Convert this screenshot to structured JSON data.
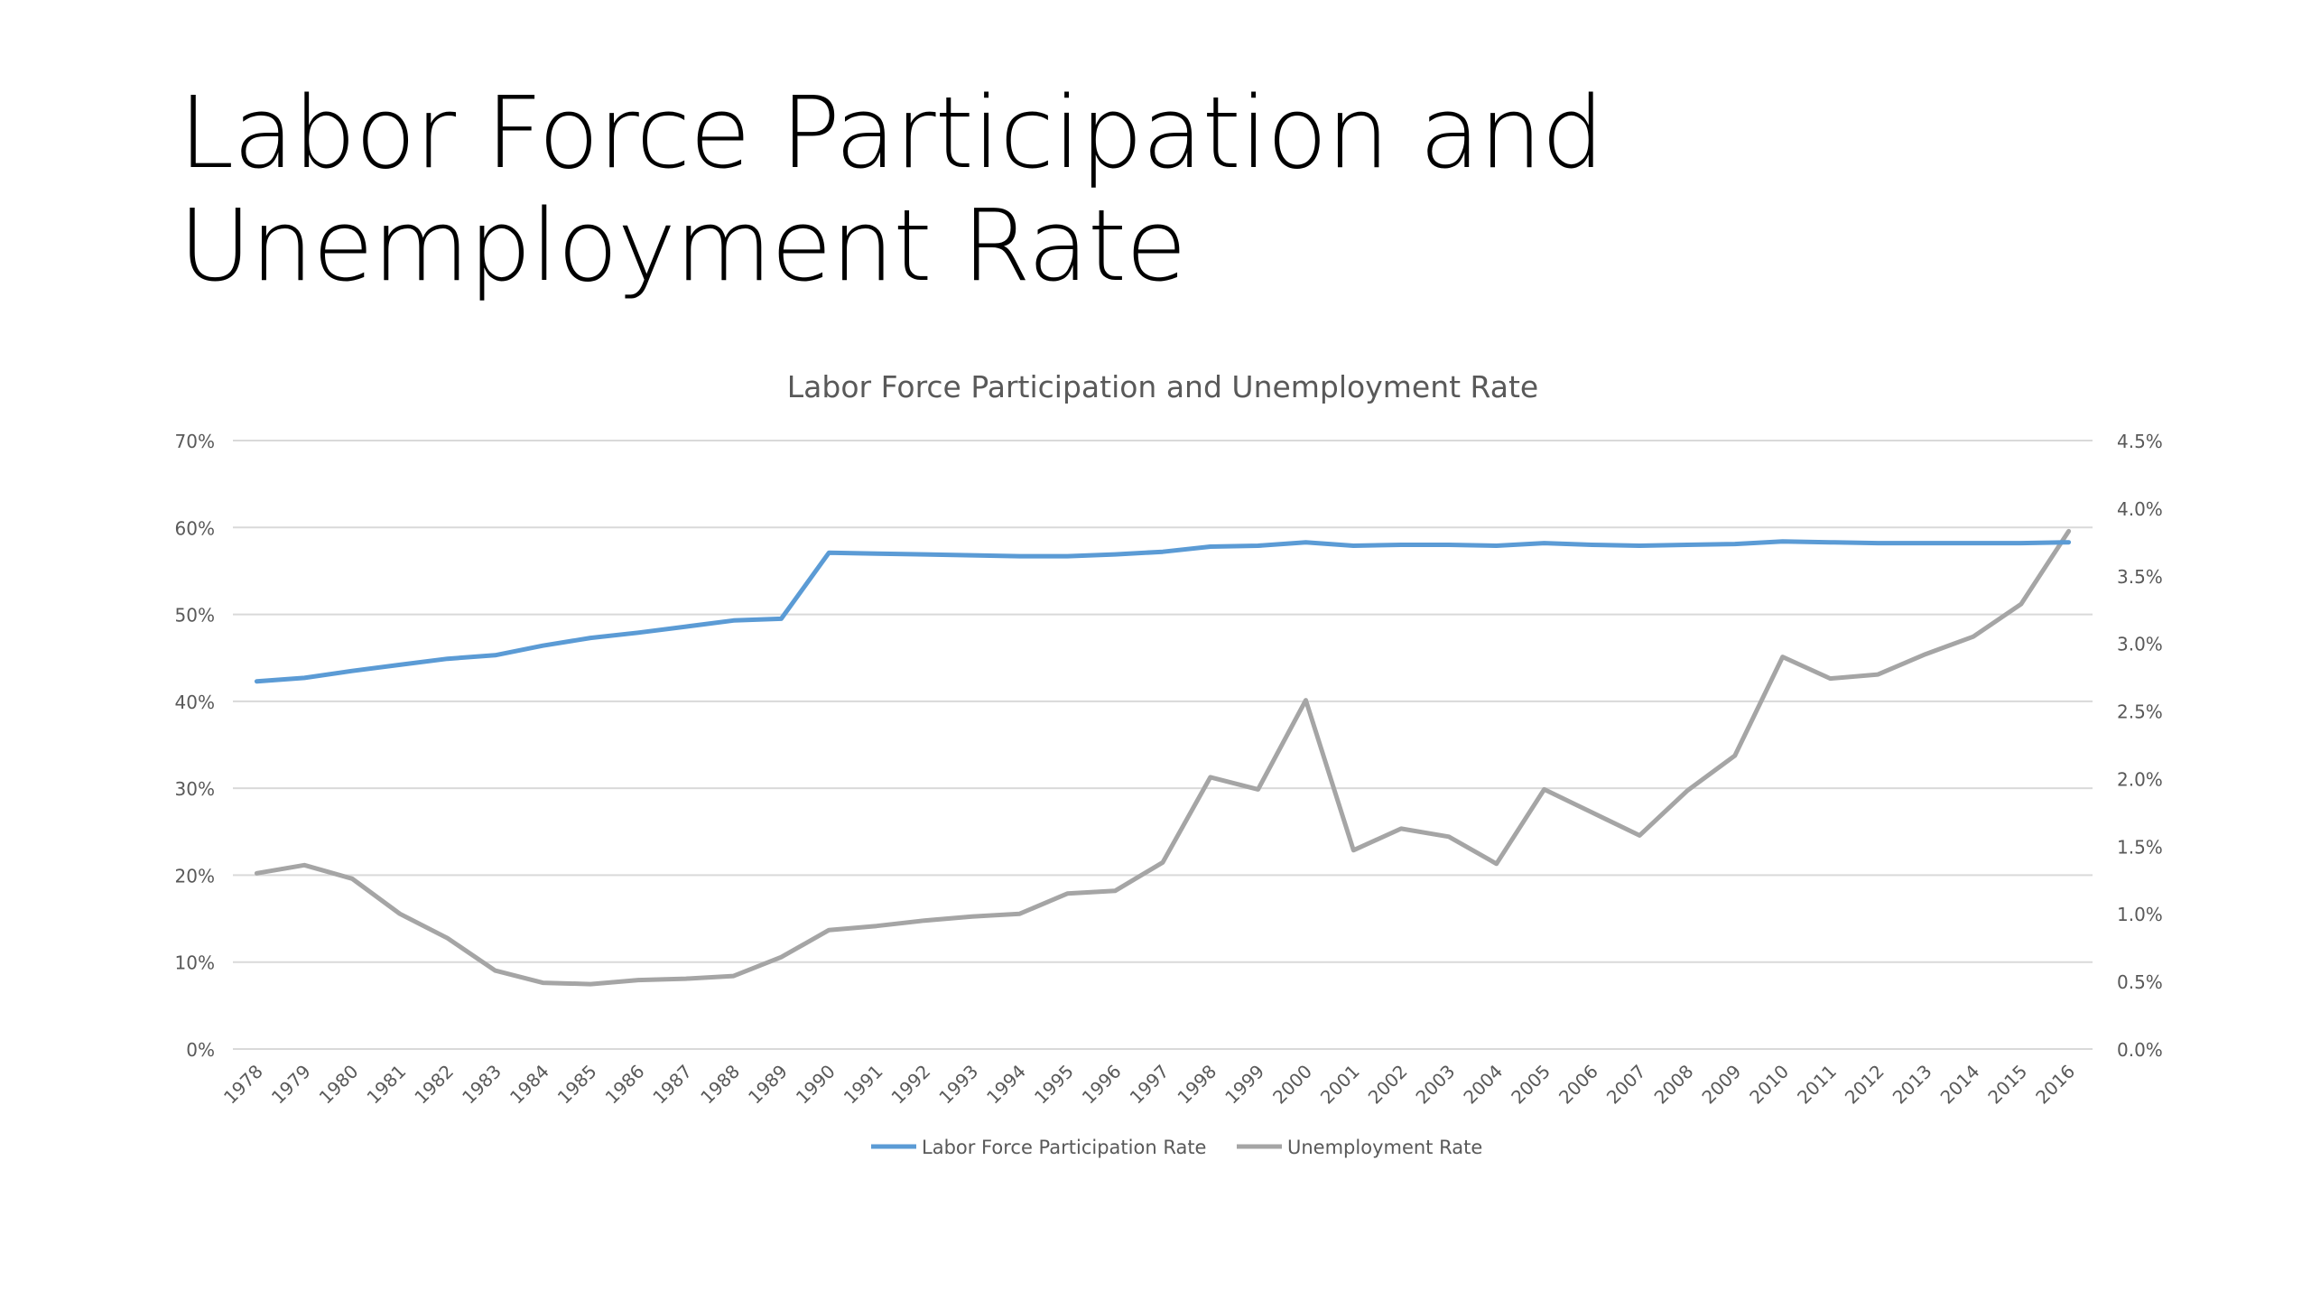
{
  "slide": {
    "title": "Labor Force Participation and Unemployment Rate"
  },
  "chart_data": {
    "type": "line",
    "title": "Labor Force Participation and Unemployment Rate",
    "xlabel": "",
    "ylabel": "",
    "x": [
      "1978",
      "1979",
      "1980",
      "1981",
      "1982",
      "1983",
      "1984",
      "1985",
      "1986",
      "1987",
      "1988",
      "1989",
      "1990",
      "1991",
      "1992",
      "1993",
      "1994",
      "1995",
      "1996",
      "1997",
      "1998",
      "1999",
      "2000",
      "2001",
      "2002",
      "2003",
      "2004",
      "2005",
      "2006",
      "2007",
      "2008",
      "2009",
      "2010",
      "2011",
      "2012",
      "2013",
      "2014",
      "2015",
      "2016"
    ],
    "y_left": {
      "lim": [
        0,
        70
      ],
      "ticks": [
        "0%",
        "10%",
        "20%",
        "30%",
        "40%",
        "50%",
        "60%",
        "70%"
      ]
    },
    "y_right": {
      "lim": [
        0,
        4.5
      ],
      "ticks": [
        "0.0%",
        "0.5%",
        "1.0%",
        "1.5%",
        "2.0%",
        "2.5%",
        "3.0%",
        "3.5%",
        "4.0%",
        "4.5%"
      ]
    },
    "grid": true,
    "legend_position": "bottom",
    "series": [
      {
        "name": "Labor Force Participation Rate",
        "axis": "left",
        "color": "#5B9BD5",
        "values": [
          42.3,
          42.7,
          43.5,
          44.2,
          44.9,
          45.3,
          46.4,
          47.3,
          47.9,
          48.6,
          49.3,
          49.5,
          57.1,
          57.0,
          56.9,
          56.8,
          56.7,
          56.7,
          56.9,
          57.2,
          57.8,
          57.9,
          58.3,
          57.9,
          58.0,
          58.0,
          57.9,
          58.2,
          58.0,
          57.9,
          58.0,
          58.1,
          58.4,
          58.3,
          58.2,
          58.2,
          58.2,
          58.2,
          58.3
        ]
      },
      {
        "name": "Unemployment Rate",
        "axis": "right",
        "color": "#A5A5A5",
        "values": [
          1.3,
          1.36,
          1.26,
          1.0,
          0.82,
          0.58,
          0.49,
          0.48,
          0.51,
          0.52,
          0.54,
          0.68,
          0.88,
          0.91,
          0.95,
          0.98,
          1.0,
          1.15,
          1.17,
          1.38,
          2.01,
          1.92,
          2.58,
          1.47,
          1.63,
          1.57,
          1.37,
          1.92,
          1.75,
          1.58,
          1.91,
          2.17,
          2.9,
          2.74,
          2.77,
          2.92,
          3.05,
          3.29,
          3.83
        ]
      }
    ]
  }
}
